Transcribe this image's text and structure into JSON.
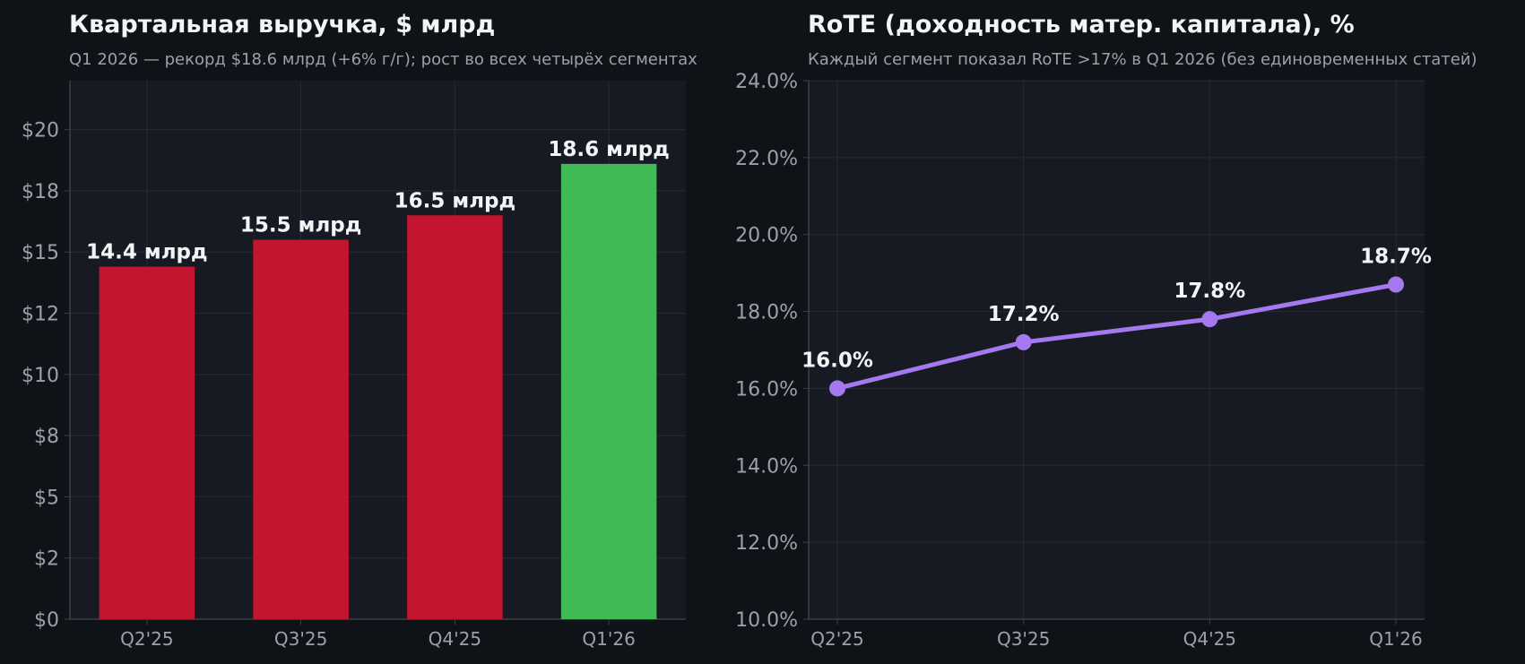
{
  "chart_data": [
    {
      "type": "bar",
      "title": "Квартальная выручка, $ млрд",
      "subtitle": "Q1 2026 — рекорд $18.6 млрд (+6% г/г); рост во всех четырёх сегментах",
      "categories": [
        "Q2'25",
        "Q3'25",
        "Q4'25",
        "Q1'26"
      ],
      "values": [
        14.4,
        15.5,
        16.5,
        18.6
      ],
      "value_labels": [
        "14.4 млрд",
        "15.5 млрд",
        "16.5 млрд",
        "18.6 млрд"
      ],
      "bar_colors": [
        "#c41530",
        "#c41530",
        "#c41530",
        "#3fba54"
      ],
      "ylim": [
        0,
        22
      ],
      "y_ticks": [
        0,
        2.5,
        5,
        7.5,
        10,
        12.5,
        15,
        17.5,
        20
      ],
      "y_tick_labels": [
        "$0",
        "$2",
        "$5",
        "$8",
        "$10",
        "$12",
        "$15",
        "$18",
        "$20"
      ],
      "grid": true,
      "xlabel": "",
      "ylabel": ""
    },
    {
      "type": "line",
      "title": "RoTE (доходность матер. капитала), %",
      "subtitle": "Каждый сегмент показал RoTE >17% в Q1 2026 (без единовременных статей)",
      "categories": [
        "Q2'25",
        "Q3'25",
        "Q4'25",
        "Q1'26"
      ],
      "values": [
        16.0,
        17.2,
        17.8,
        18.7
      ],
      "value_labels": [
        "16.0%",
        "17.2%",
        "17.8%",
        "18.7%"
      ],
      "line_color": "#a678f0",
      "ylim": [
        10,
        24
      ],
      "y_ticks": [
        10,
        12,
        14,
        16,
        18,
        20,
        22,
        24
      ],
      "y_tick_labels": [
        "10.0%",
        "12.0%",
        "14.0%",
        "16.0%",
        "18.0%",
        "20.0%",
        "22.0%",
        "24.0%"
      ],
      "grid": true,
      "xlabel": "",
      "ylabel": ""
    }
  ],
  "colors": {
    "page_bg": "#0f1317",
    "plot_bg": "#171a22",
    "grid": "#262a33",
    "axis": "#3a3f49"
  }
}
